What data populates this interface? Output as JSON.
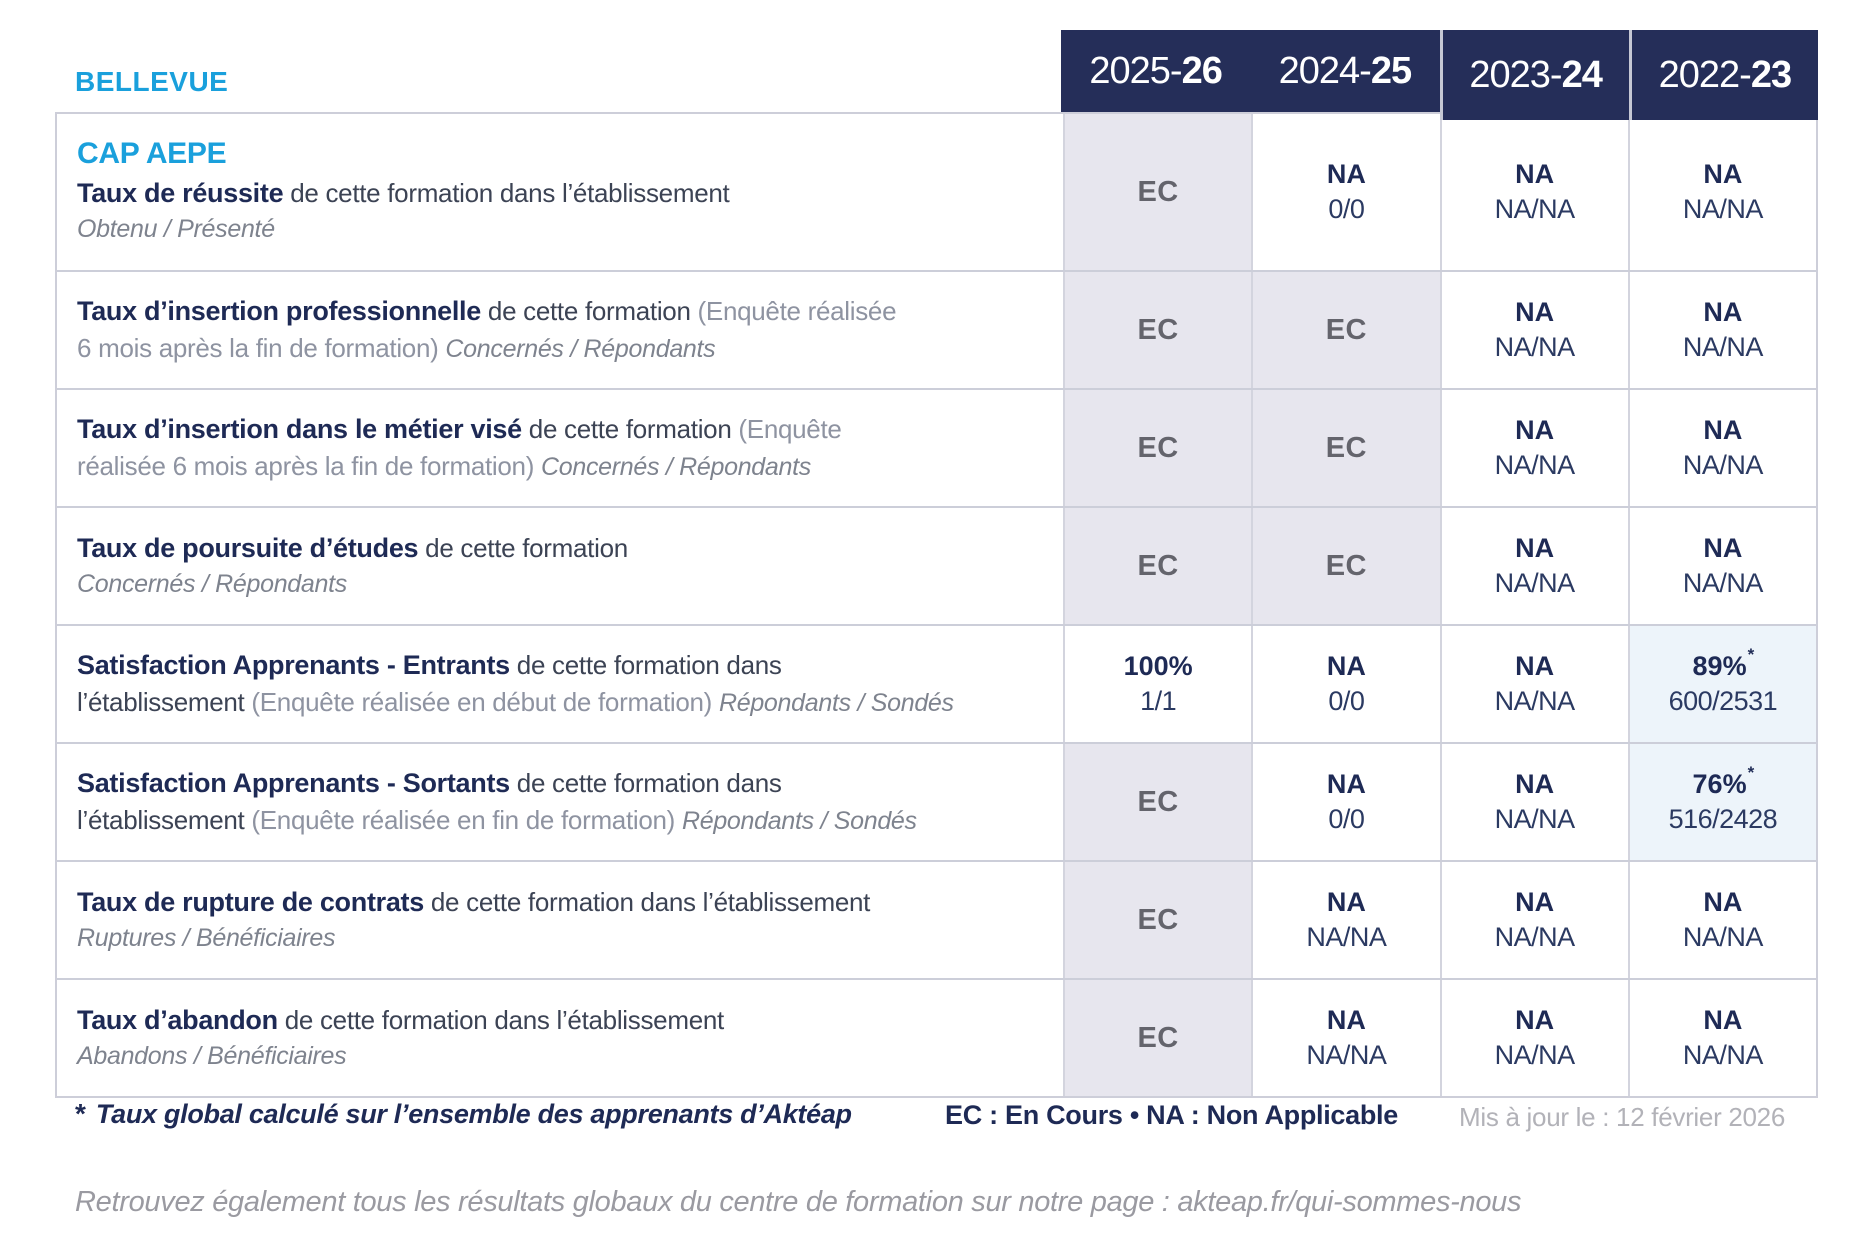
{
  "colors": {
    "accent_blue": "#1aa0dc",
    "navy": "#252e59",
    "ec_cell_bg": "#e7e6ee",
    "highlight_cell_bg": "#edf4fa"
  },
  "brand": {
    "site_label": "BELLEVUE"
  },
  "header": {
    "years": [
      {
        "prefix": "2025-",
        "suffix": "26"
      },
      {
        "prefix": "2024-",
        "suffix": "25"
      },
      {
        "prefix": "2023-",
        "suffix": "24"
      },
      {
        "prefix": "2022-",
        "suffix": "23"
      }
    ]
  },
  "table": {
    "program": "CAP AEPE",
    "rows": [
      {
        "segments": [
          {
            "t": "Taux de réussite",
            "s": "title"
          },
          {
            "t": " de cette formation dans l’établissement",
            "s": "desc"
          },
          {
            "t": "Obtenu / Présenté",
            "s": "italic",
            "br": true
          }
        ],
        "cells": [
          {
            "type": "ec",
            "main": "EC"
          },
          {
            "type": "na",
            "main": "NA",
            "sub": "0/0"
          },
          {
            "type": "na",
            "main": "NA",
            "sub": "NA/NA"
          },
          {
            "type": "na",
            "main": "NA",
            "sub": "NA/NA"
          }
        ]
      },
      {
        "segments": [
          {
            "t": "Taux d’insertion professionnelle",
            "s": "title"
          },
          {
            "t": " de cette formation ",
            "s": "desc"
          },
          {
            "t": "(Enquête réalisée",
            "s": "paren"
          },
          {
            "t": "6 mois après la fin de formation) ",
            "s": "paren",
            "br": true
          },
          {
            "t": "Concernés / Répondants",
            "s": "italic"
          }
        ],
        "cells": [
          {
            "type": "ec",
            "main": "EC"
          },
          {
            "type": "ec",
            "main": "EC"
          },
          {
            "type": "na",
            "main": "NA",
            "sub": "NA/NA"
          },
          {
            "type": "na",
            "main": "NA",
            "sub": "NA/NA"
          }
        ]
      },
      {
        "segments": [
          {
            "t": "Taux d’insertion dans le métier visé",
            "s": "title"
          },
          {
            "t": " de cette formation ",
            "s": "desc"
          },
          {
            "t": "(Enquête",
            "s": "paren"
          },
          {
            "t": "réalisée 6 mois après la fin de formation) ",
            "s": "paren",
            "br": true
          },
          {
            "t": "Concernés / Répondants",
            "s": "italic"
          }
        ],
        "cells": [
          {
            "type": "ec",
            "main": "EC"
          },
          {
            "type": "ec",
            "main": "EC"
          },
          {
            "type": "na",
            "main": "NA",
            "sub": "NA/NA"
          },
          {
            "type": "na",
            "main": "NA",
            "sub": "NA/NA"
          }
        ]
      },
      {
        "segments": [
          {
            "t": "Taux de poursuite d’études",
            "s": "title"
          },
          {
            "t": " de cette formation",
            "s": "desc"
          },
          {
            "t": "Concernés / Répondants",
            "s": "italic",
            "br": true
          }
        ],
        "cells": [
          {
            "type": "ec",
            "main": "EC"
          },
          {
            "type": "ec",
            "main": "EC"
          },
          {
            "type": "na",
            "main": "NA",
            "sub": "NA/NA"
          },
          {
            "type": "na",
            "main": "NA",
            "sub": "NA/NA"
          }
        ]
      },
      {
        "segments": [
          {
            "t": "Satisfaction Apprenants - Entrants",
            "s": "title"
          },
          {
            "t": " de cette formation dans",
            "s": "desc"
          },
          {
            "t": "l’établissement ",
            "s": "desc",
            "br": true
          },
          {
            "t": "(Enquête réalisée en début de formation) ",
            "s": "paren"
          },
          {
            "t": "Répondants / Sondés",
            "s": "italic"
          }
        ],
        "cells": [
          {
            "type": "pct",
            "main": "100%",
            "sub": "1/1"
          },
          {
            "type": "na",
            "main": "NA",
            "sub": "0/0"
          },
          {
            "type": "na",
            "main": "NA",
            "sub": "NA/NA"
          },
          {
            "type": "pct",
            "main": "89%",
            "sub": "600/2531",
            "star": true,
            "bg": "blue"
          }
        ]
      },
      {
        "segments": [
          {
            "t": "Satisfaction Apprenants - Sortants",
            "s": "title"
          },
          {
            "t": " de cette formation dans",
            "s": "desc"
          },
          {
            "t": "l’établissement ",
            "s": "desc",
            "br": true
          },
          {
            "t": "(Enquête réalisée en fin de formation) ",
            "s": "paren"
          },
          {
            "t": "Répondants / Sondés",
            "s": "italic"
          }
        ],
        "cells": [
          {
            "type": "ec",
            "main": "EC"
          },
          {
            "type": "na",
            "main": "NA",
            "sub": "0/0"
          },
          {
            "type": "na",
            "main": "NA",
            "sub": "NA/NA"
          },
          {
            "type": "pct",
            "main": "76%",
            "sub": "516/2428",
            "star": true,
            "bg": "blue"
          }
        ]
      },
      {
        "segments": [
          {
            "t": "Taux de rupture de contrats",
            "s": "title"
          },
          {
            "t": " de cette formation dans l’établissement",
            "s": "desc"
          },
          {
            "t": "Ruptures / Bénéficiaires",
            "s": "italic",
            "br": true
          }
        ],
        "cells": [
          {
            "type": "ec",
            "main": "EC"
          },
          {
            "type": "na",
            "main": "NA",
            "sub": "NA/NA"
          },
          {
            "type": "na",
            "main": "NA",
            "sub": "NA/NA"
          },
          {
            "type": "na",
            "main": "NA",
            "sub": "NA/NA"
          }
        ]
      },
      {
        "segments": [
          {
            "t": "Taux d’abandon",
            "s": "title"
          },
          {
            "t": " de cette formation dans l’établissement",
            "s": "desc"
          },
          {
            "t": "Abandons / Bénéficiaires",
            "s": "italic",
            "br": true
          }
        ],
        "cells": [
          {
            "type": "ec",
            "main": "EC"
          },
          {
            "type": "na",
            "main": "NA",
            "sub": "NA/NA"
          },
          {
            "type": "na",
            "main": "NA",
            "sub": "NA/NA"
          },
          {
            "type": "na",
            "main": "NA",
            "sub": "NA/NA"
          }
        ]
      }
    ]
  },
  "footer": {
    "note_star": "*",
    "note": "Taux global calculé sur l’ensemble des apprenants d’Aktéap",
    "legend": "EC : En Cours   •   NA : Non Applicable",
    "updated": "Mis à jour le : 12 février 2026",
    "bottom_line": "Retrouvez également tous les résultats globaux du centre de formation sur notre page : akteap.fr/qui-sommes-nous"
  }
}
